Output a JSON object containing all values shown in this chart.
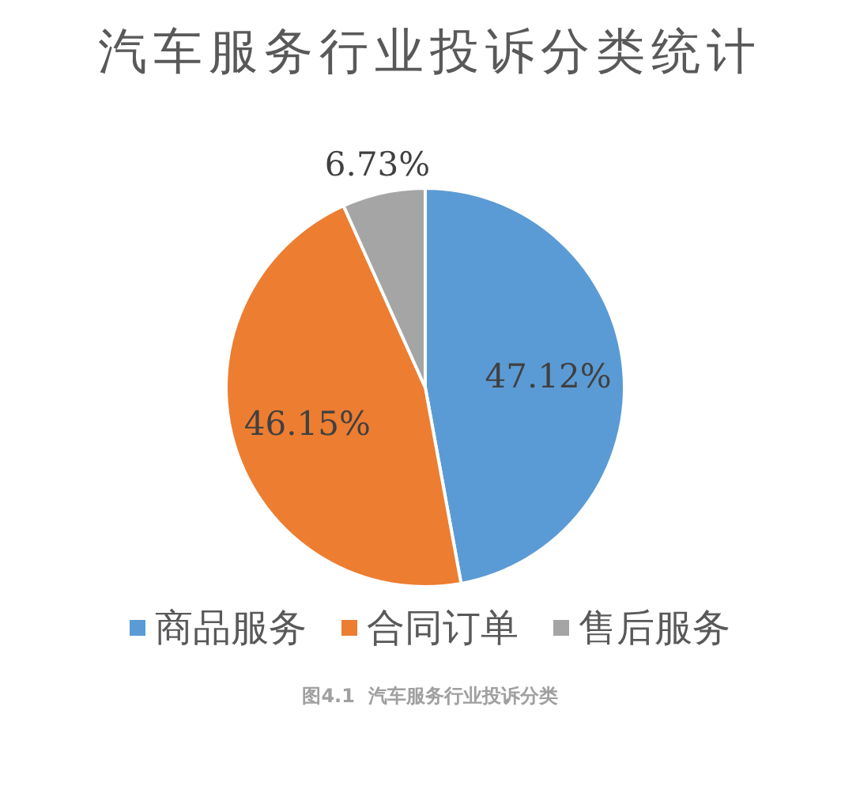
{
  "chart_data": {
    "type": "pie",
    "title": "汽车服务行业投诉分类统计",
    "categories": [
      "商品服务",
      "合同订单",
      "售后服务"
    ],
    "values": [
      47.12,
      46.15,
      6.73
    ],
    "colors": [
      "#5b9bd5",
      "#ed7d31",
      "#a5a5a5"
    ],
    "value_labels": [
      "47.12%",
      "46.15%",
      "6.73%"
    ],
    "legend": "bottom",
    "annotations": [
      "图4.1  汽车服务行业投诉分类"
    ]
  }
}
